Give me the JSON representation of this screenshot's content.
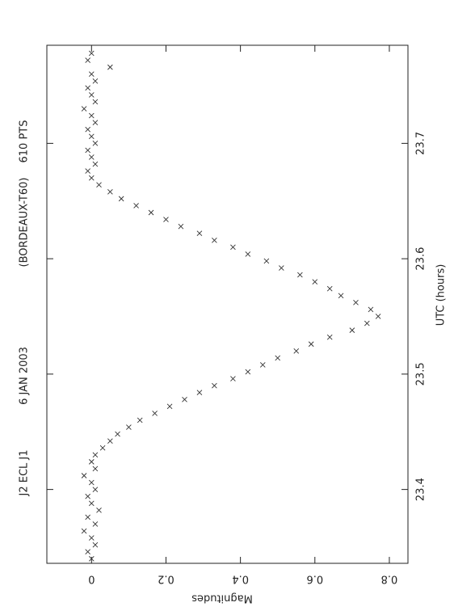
{
  "chart_data": {
    "type": "scatter",
    "annotations": [
      "J2 ECL J1",
      "6 JAN 2003",
      "(BORDEAUX-T60)",
      "610 PTS"
    ],
    "x_label": "UTC (hours)",
    "y_label": "Magnitudes",
    "x": [
      23.34,
      23.346,
      23.352,
      23.358,
      23.364,
      23.37,
      23.376,
      23.382,
      23.388,
      23.394,
      23.4,
      23.406,
      23.412,
      23.418,
      23.424,
      23.43,
      23.436,
      23.442,
      23.448,
      23.454,
      23.46,
      23.466,
      23.472,
      23.478,
      23.484,
      23.49,
      23.496,
      23.502,
      23.508,
      23.514,
      23.52,
      23.526,
      23.532,
      23.538,
      23.544,
      23.55,
      23.556,
      23.562,
      23.568,
      23.574,
      23.58,
      23.586,
      23.592,
      23.598,
      23.604,
      23.61,
      23.616,
      23.622,
      23.628,
      23.634,
      23.64,
      23.646,
      23.652,
      23.658,
      23.664,
      23.67,
      23.676,
      23.682,
      23.688,
      23.694,
      23.7,
      23.706,
      23.712,
      23.718,
      23.724,
      23.73,
      23.736,
      23.742,
      23.748,
      23.754,
      23.76,
      23.766,
      23.772,
      23.778
    ],
    "values": [
      0.0,
      -0.01,
      0.01,
      0.0,
      -0.02,
      0.01,
      -0.01,
      0.02,
      0.0,
      -0.01,
      0.01,
      0.0,
      -0.02,
      0.01,
      0.0,
      0.01,
      0.03,
      0.05,
      0.07,
      0.1,
      0.13,
      0.17,
      0.21,
      0.25,
      0.29,
      0.33,
      0.38,
      0.42,
      0.46,
      0.5,
      0.55,
      0.59,
      0.64,
      0.7,
      0.74,
      0.77,
      0.75,
      0.71,
      0.67,
      0.64,
      0.6,
      0.56,
      0.51,
      0.47,
      0.42,
      0.38,
      0.33,
      0.29,
      0.24,
      0.2,
      0.16,
      0.12,
      0.08,
      0.05,
      0.02,
      0.0,
      -0.01,
      0.01,
      0.0,
      -0.01,
      0.01,
      0.0,
      -0.01,
      0.01,
      0.0,
      -0.02,
      0.01,
      0.0,
      -0.01,
      0.01,
      0.0,
      0.05,
      -0.01,
      0.0
    ],
    "color": "#333333",
    "xlim": [
      23.336,
      23.785
    ],
    "xticks": [
      23.4,
      23.5,
      23.6,
      23.7
    ],
    "ylim": [
      -0.12,
      0.85
    ],
    "yticks": [
      0,
      0.2,
      0.4,
      0.6,
      0.8
    ]
  }
}
